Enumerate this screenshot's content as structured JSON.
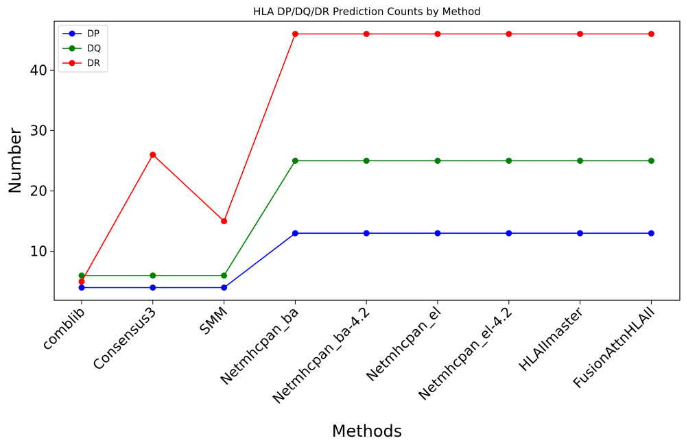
{
  "chart_data": {
    "type": "line",
    "title": "HLA DP/DQ/DR Prediction Counts by Method",
    "xlabel": "Methods",
    "ylabel": "Number",
    "categories": [
      "comblib",
      "Consensus3",
      "SMM",
      "Netmhcpan_ba",
      "Netmhcpan_ba-4.2",
      "Netmhcpan_el",
      "Netmhcpan_el-4.2",
      "HLAIImaster",
      "FusionAttnHLAII"
    ],
    "series": [
      {
        "name": "DP",
        "color": "#0000ff",
        "values": [
          4,
          4,
          4,
          13,
          13,
          13,
          13,
          13,
          13
        ]
      },
      {
        "name": "DQ",
        "color": "#008000",
        "values": [
          6,
          6,
          6,
          25,
          25,
          25,
          25,
          25,
          25
        ]
      },
      {
        "name": "DR",
        "color": "#ff0000",
        "values": [
          5,
          26,
          15,
          46,
          46,
          46,
          46,
          46,
          46
        ]
      }
    ],
    "yticks": [
      10,
      20,
      30,
      40
    ],
    "ylim": [
      1.9,
      48.1
    ],
    "grid": false,
    "legend": "top-left"
  }
}
